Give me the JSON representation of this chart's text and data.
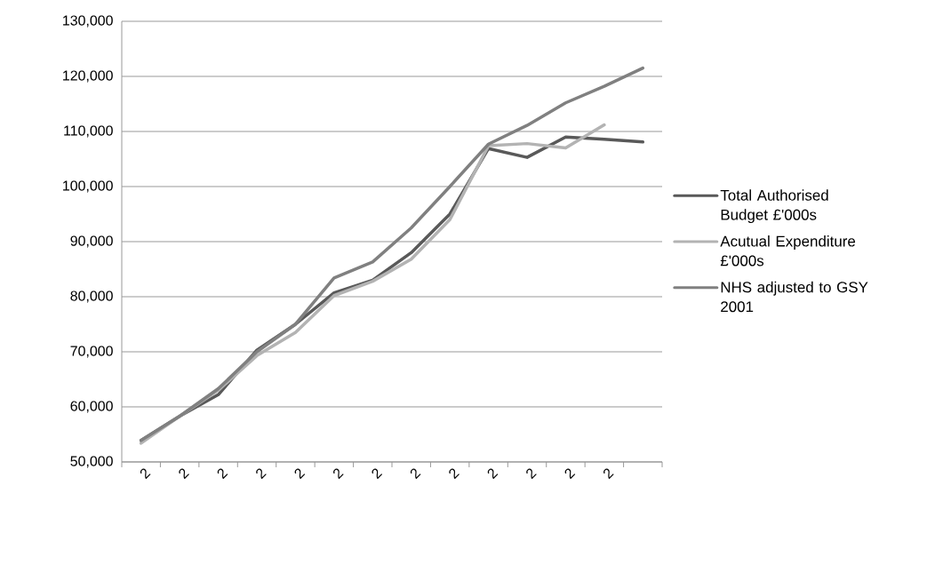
{
  "chart_data": {
    "type": "line",
    "categories": [
      "2",
      "2",
      "2",
      "2",
      "2",
      "2",
      "2",
      "2",
      "2",
      "2",
      "2",
      "2",
      "2",
      null
    ],
    "series": [
      {
        "name": "Total Authorised Budget £'000s",
        "color": "#595959",
        "values": [
          53900,
          58300,
          62200,
          70300,
          75000,
          80700,
          83000,
          88000,
          95000,
          106900,
          105300,
          109000,
          108600,
          108100
        ]
      },
      {
        "name": "Acutual Expenditure £'000s",
        "color": "#b3b3b3",
        "values": [
          53400,
          58300,
          63000,
          69300,
          73500,
          80200,
          82800,
          86800,
          94000,
          107400,
          107800,
          107000,
          111200,
          null
        ]
      },
      {
        "name": "NHS adjusted to GSY 2001",
        "color": "#808080",
        "values": [
          53900,
          58300,
          63300,
          70000,
          75000,
          83400,
          86300,
          92500,
          100000,
          107700,
          111100,
          115200,
          118200,
          121500
        ]
      }
    ],
    "ylim": [
      50000,
      130000
    ],
    "yticks": [
      {
        "value": 50000,
        "label": "50,000"
      },
      {
        "value": 60000,
        "label": "60,000"
      },
      {
        "value": 70000,
        "label": "70,000"
      },
      {
        "value": 80000,
        "label": "80,000"
      },
      {
        "value": 90000,
        "label": "90,000"
      },
      {
        "value": 100000,
        "label": "100,000"
      },
      {
        "value": 110000,
        "label": "110,000"
      },
      {
        "value": 120000,
        "label": "120,000"
      },
      {
        "value": 130000,
        "label": "130,000"
      }
    ],
    "grid": "y",
    "legend": "right",
    "marker": "none",
    "line_style": "solid"
  }
}
